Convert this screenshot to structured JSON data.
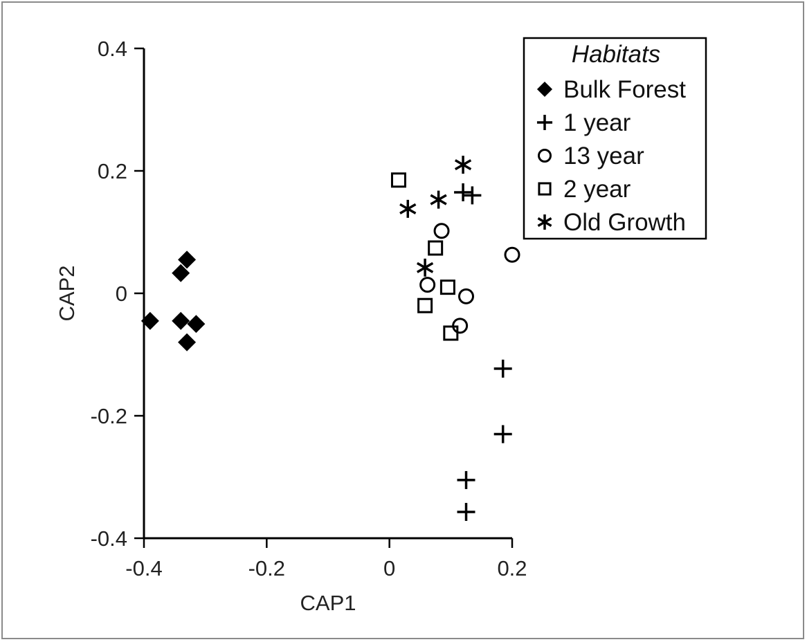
{
  "chart_data": {
    "type": "scatter",
    "xlabel": "CAP1",
    "ylabel": "CAP2",
    "xlim": [
      -0.4,
      0.2
    ],
    "ylim": [
      -0.4,
      0.4
    ],
    "xticks": [
      -0.4,
      -0.2,
      0,
      0.2
    ],
    "yticks": [
      0.4,
      0.2,
      0,
      -0.2,
      -0.4
    ],
    "xtick_labels": [
      "-0.4",
      "-0.2",
      "0",
      "0.2"
    ],
    "ytick_labels": [
      "0.4",
      "0.2",
      "0",
      "-0.2",
      "-0.4"
    ],
    "grid": false,
    "legend": {
      "title": "Habitats",
      "placement": "top-right",
      "entries": [
        {
          "label": "Bulk Forest",
          "marker": "diamond-filled"
        },
        {
          "label": "1 year",
          "marker": "plus"
        },
        {
          "label": "13 year",
          "marker": "circle-open"
        },
        {
          "label": "2 year",
          "marker": "square-open"
        },
        {
          "label": "Old Growth",
          "marker": "asterisk"
        }
      ]
    },
    "series": [
      {
        "name": "Bulk Forest",
        "marker": "diamond-filled",
        "points": [
          [
            -0.39,
            -0.045
          ],
          [
            -0.33,
            0.055
          ],
          [
            -0.34,
            0.033
          ],
          [
            -0.34,
            -0.045
          ],
          [
            -0.315,
            -0.05
          ],
          [
            -0.33,
            -0.08
          ]
        ]
      },
      {
        "name": "1 year",
        "marker": "plus",
        "points": [
          [
            0.12,
            0.165
          ],
          [
            0.135,
            0.16
          ],
          [
            0.185,
            -0.123
          ],
          [
            0.185,
            -0.23
          ],
          [
            0.125,
            -0.305
          ],
          [
            0.125,
            -0.357
          ]
        ]
      },
      {
        "name": "13 year",
        "marker": "circle-open",
        "points": [
          [
            0.085,
            0.102
          ],
          [
            0.2,
            0.063
          ],
          [
            0.062,
            0.014
          ],
          [
            0.125,
            -0.005
          ],
          [
            0.115,
            -0.053
          ]
        ]
      },
      {
        "name": "2 year",
        "marker": "square-open",
        "points": [
          [
            0.015,
            0.185
          ],
          [
            0.075,
            0.074
          ],
          [
            0.095,
            0.01
          ],
          [
            0.058,
            -0.02
          ],
          [
            0.1,
            -0.065
          ]
        ]
      },
      {
        "name": "Old Growth",
        "marker": "asterisk",
        "points": [
          [
            0.12,
            0.21
          ],
          [
            0.08,
            0.153
          ],
          [
            0.03,
            0.138
          ],
          [
            0.058,
            0.042
          ]
        ]
      }
    ],
    "colors": {
      "marker": "#000000",
      "axis": "#000000",
      "text": "#222222"
    }
  }
}
